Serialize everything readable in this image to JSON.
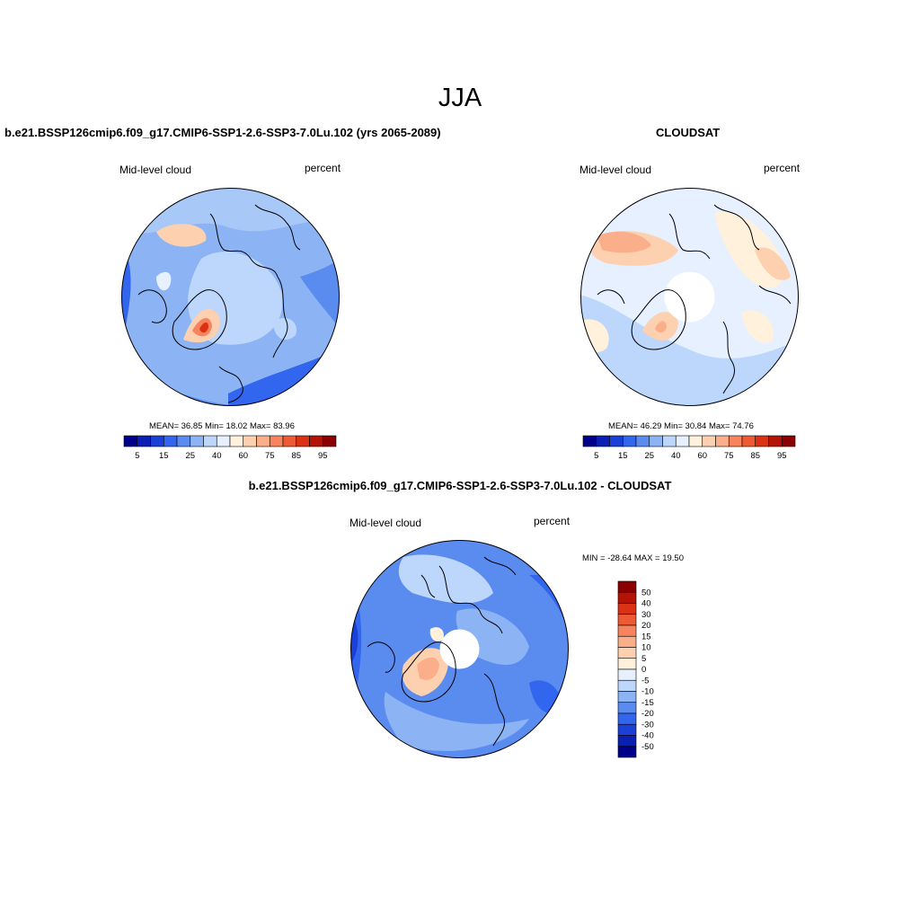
{
  "figure_title": "JJA",
  "panels": [
    {
      "title": "b.e21.BSSP126cmip6.f09_g17.CMIP6-SSP1-2.6-SSP3-7.0Lu.102 (yrs 2065-2089)",
      "field_label": "Mid-level cloud",
      "units": "percent",
      "stats": "MEAN=  36.85  Min=  18.02  Max=  83.96",
      "colorbar_labels": [
        "5",
        "15",
        "25",
        "40",
        "60",
        "75",
        "85",
        "95"
      ]
    },
    {
      "title": "CLOUDSAT",
      "field_label": "Mid-level cloud",
      "units": "percent",
      "stats": "MEAN=  46.29  Min=  30.84  Max=  74.76",
      "colorbar_labels": [
        "5",
        "15",
        "25",
        "40",
        "60",
        "75",
        "85",
        "95"
      ]
    },
    {
      "title": "b.e21.BSSP126cmip6.f09_g17.CMIP6-SSP1-2.6-SSP3-7.0Lu.102 - CLOUDSAT",
      "field_label": "Mid-level cloud",
      "units": "percent",
      "stats": "MIN = -28.64 MAX =  19.50",
      "colorbar_labels": [
        "50",
        "40",
        "30",
        "20",
        "15",
        "10",
        "5",
        "0",
        "-5",
        "-10",
        "-15",
        "-20",
        "-30",
        "-40",
        "-50"
      ]
    }
  ],
  "colors": {
    "abs_scale": [
      "#00008b",
      "#0a1fb4",
      "#1a40d8",
      "#3366ee",
      "#5a8cf0",
      "#8cb4f5",
      "#bcd7fb",
      "#e6f0ff",
      "#fff1dc",
      "#fdd0b0",
      "#fbae8a",
      "#f7845c",
      "#ee5a34",
      "#db3216",
      "#b41405",
      "#8b0000"
    ],
    "diff_scale": [
      "#8b0000",
      "#b41405",
      "#db3216",
      "#ee5a34",
      "#f7845c",
      "#fbae8a",
      "#fdd0b0",
      "#fff1dc",
      "#e6f0ff",
      "#bcd7fb",
      "#8cb4f5",
      "#5a8cf0",
      "#3366ee",
      "#1a40d8",
      "#0a1fb4",
      "#00008b"
    ]
  }
}
